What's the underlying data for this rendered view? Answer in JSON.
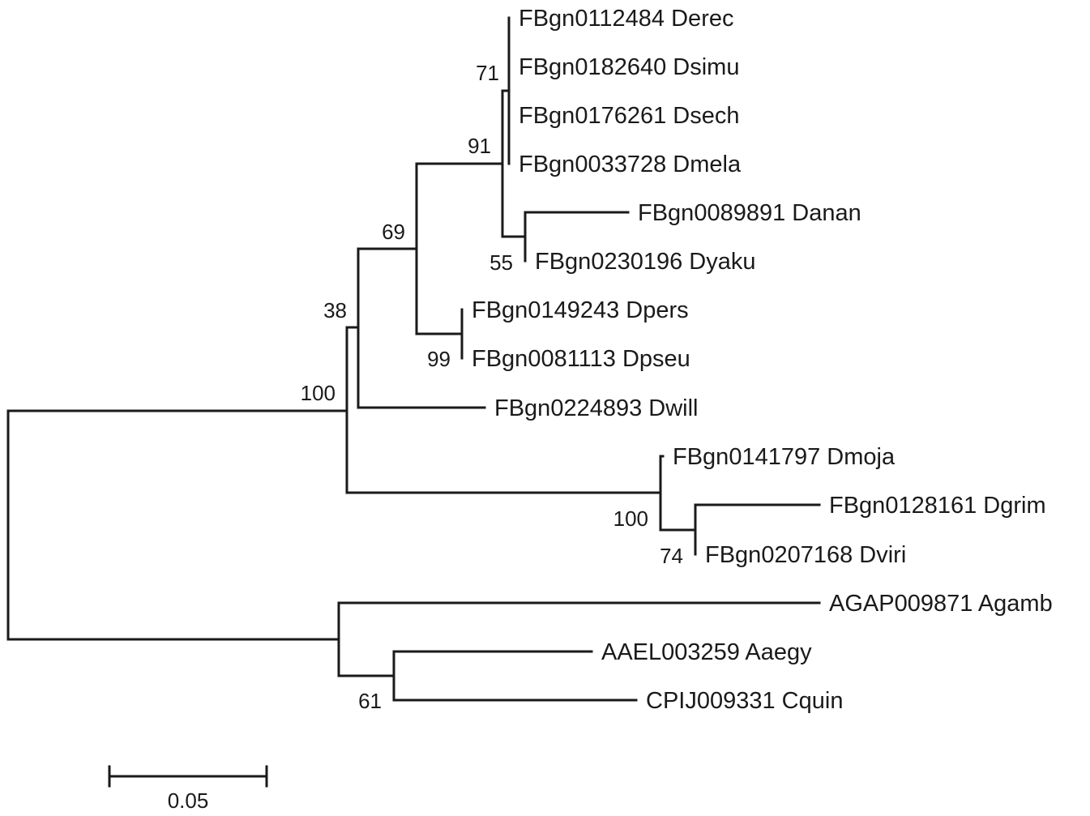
{
  "tree": {
    "leaves": [
      {
        "label": "FBgn0112484 Derec"
      },
      {
        "label": "FBgn0182640 Dsimu"
      },
      {
        "label": "FBgn0176261 Dsech"
      },
      {
        "label": "FBgn0033728 Dmela"
      },
      {
        "label": "FBgn0089891 Danan"
      },
      {
        "label": "FBgn0230196 Dyaku"
      },
      {
        "label": "FBgn0149243 Dpers"
      },
      {
        "label": "FBgn0081113 Dpseu"
      },
      {
        "label": "FBgn0224893 Dwill"
      },
      {
        "label": "FBgn0141797 Dmoja"
      },
      {
        "label": "FBgn0128161 Dgrim"
      },
      {
        "label": "FBgn0207168 Dviri"
      },
      {
        "label": "AGAP009871 Agamb"
      },
      {
        "label": "AAEL003259 Aaegy"
      },
      {
        "label": "CPIJ009331 Cquin"
      }
    ],
    "support_values": [
      "71",
      "91",
      "55",
      "69",
      "99",
      "38",
      "100",
      "100",
      "74",
      "61"
    ],
    "scale_bar": {
      "label": "0.05"
    }
  }
}
